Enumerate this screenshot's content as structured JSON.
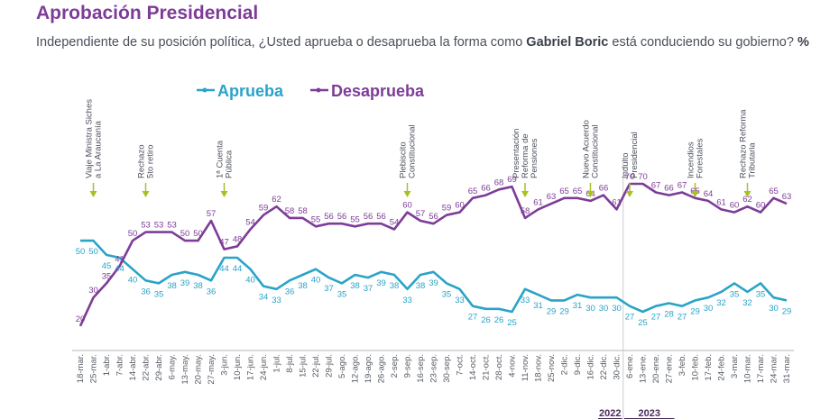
{
  "header": {
    "title": "Aprobación Presidencial",
    "subtitle_pre": "Independiente de su posición política, ¿Usted aprueba o desaprueba la forma como ",
    "subtitle_bold": "Gabriel Boric",
    "subtitle_post": " está conduciendo su gobierno? ",
    "subtitle_unit": "%"
  },
  "chart_data": {
    "type": "line",
    "x": [
      "18-mar.",
      "25-mar.",
      "1-abr.",
      "7-abr.",
      "14-abr.",
      "22-abr.",
      "29-abr.",
      "6-may.",
      "13-may.",
      "20-may.",
      "27-may.",
      "3-jun.",
      "10-jun.",
      "17-jun.",
      "24-jun.",
      "1-jul.",
      "8-jul.",
      "15-jul.",
      "22-jul.",
      "29-jul.",
      "5-ago.",
      "12-ago.",
      "19-ago.",
      "26-ago.",
      "2-sep.",
      "9-sep.",
      "16-sep.",
      "23-sep.",
      "30-sep.",
      "7-oct.",
      "14-oct.",
      "21-oct.",
      "28-oct.",
      "4-nov.",
      "11-nov.",
      "18-nov.",
      "25-nov.",
      "2-dic.",
      "9-dic.",
      "16-dic.",
      "22-dic.",
      "30-dic.",
      "6-ene.",
      "13-ene.",
      "20-ene.",
      "27-ene.",
      "3-feb.",
      "10-feb.",
      "17-feb.",
      "24-feb.",
      "3-mar.",
      "10-mar.",
      "17-mar.",
      "24-mar.",
      "31-mar."
    ],
    "series": [
      {
        "name": "Aprueba",
        "color": "#2aa3c9",
        "values": [
          50,
          50,
          45,
          44,
          40,
          36,
          35,
          38,
          39,
          38,
          36,
          44,
          44,
          40,
          34,
          33,
          36,
          38,
          40,
          37,
          35,
          38,
          37,
          39,
          38,
          33,
          38,
          39,
          35,
          33,
          27,
          26,
          26,
          25,
          33,
          31,
          29,
          29,
          31,
          30,
          30,
          30,
          27,
          25,
          27,
          28,
          27,
          29,
          30,
          32,
          35,
          32,
          35,
          30,
          29
        ]
      },
      {
        "name": "Desaprueba",
        "color": "#7d3c98",
        "values": [
          20,
          30,
          35,
          41,
          50,
          53,
          53,
          53,
          50,
          50,
          57,
          47,
          48,
          54,
          59,
          62,
          58,
          58,
          55,
          56,
          56,
          55,
          56,
          56,
          54,
          60,
          57,
          56,
          59,
          60,
          65,
          66,
          68,
          69,
          58,
          61,
          63,
          65,
          65,
          64,
          66,
          61,
          70,
          70,
          67,
          66,
          67,
          65,
          64,
          61,
          60,
          62,
          60,
          65,
          63
        ]
      }
    ],
    "annotations": [
      {
        "index": 1,
        "text": [
          "Viaje Ministra Siches",
          "a La Araucanía"
        ]
      },
      {
        "index": 5,
        "text": [
          "Rechazo",
          "5to retiro"
        ]
      },
      {
        "index": 11,
        "text": [
          "1ª Cuenta",
          "Pública"
        ]
      },
      {
        "index": 25,
        "text": [
          "Plebiscito",
          "Constitucional"
        ]
      },
      {
        "index": 34,
        "text": [
          "Presentación",
          "Reforma de",
          "Pensiones"
        ]
      },
      {
        "index": 39,
        "text": [
          "Nuevo Acuerdo",
          "Constitucional"
        ]
      },
      {
        "index": 42,
        "text": [
          "Indulto",
          "Presidencial"
        ]
      },
      {
        "index": 47,
        "text": [
          "Incendios",
          "Forestales"
        ]
      },
      {
        "index": 51,
        "text": [
          "Rechazo Reforma",
          "Tributaria"
        ]
      }
    ],
    "years": [
      {
        "label": "2022",
        "start": 40,
        "end": 41
      },
      {
        "label": "2023",
        "start": 42,
        "end": 45
      }
    ],
    "year_divider_after_index": 41,
    "ylim": [
      15,
      78
    ],
    "legend_position": "top-left"
  }
}
